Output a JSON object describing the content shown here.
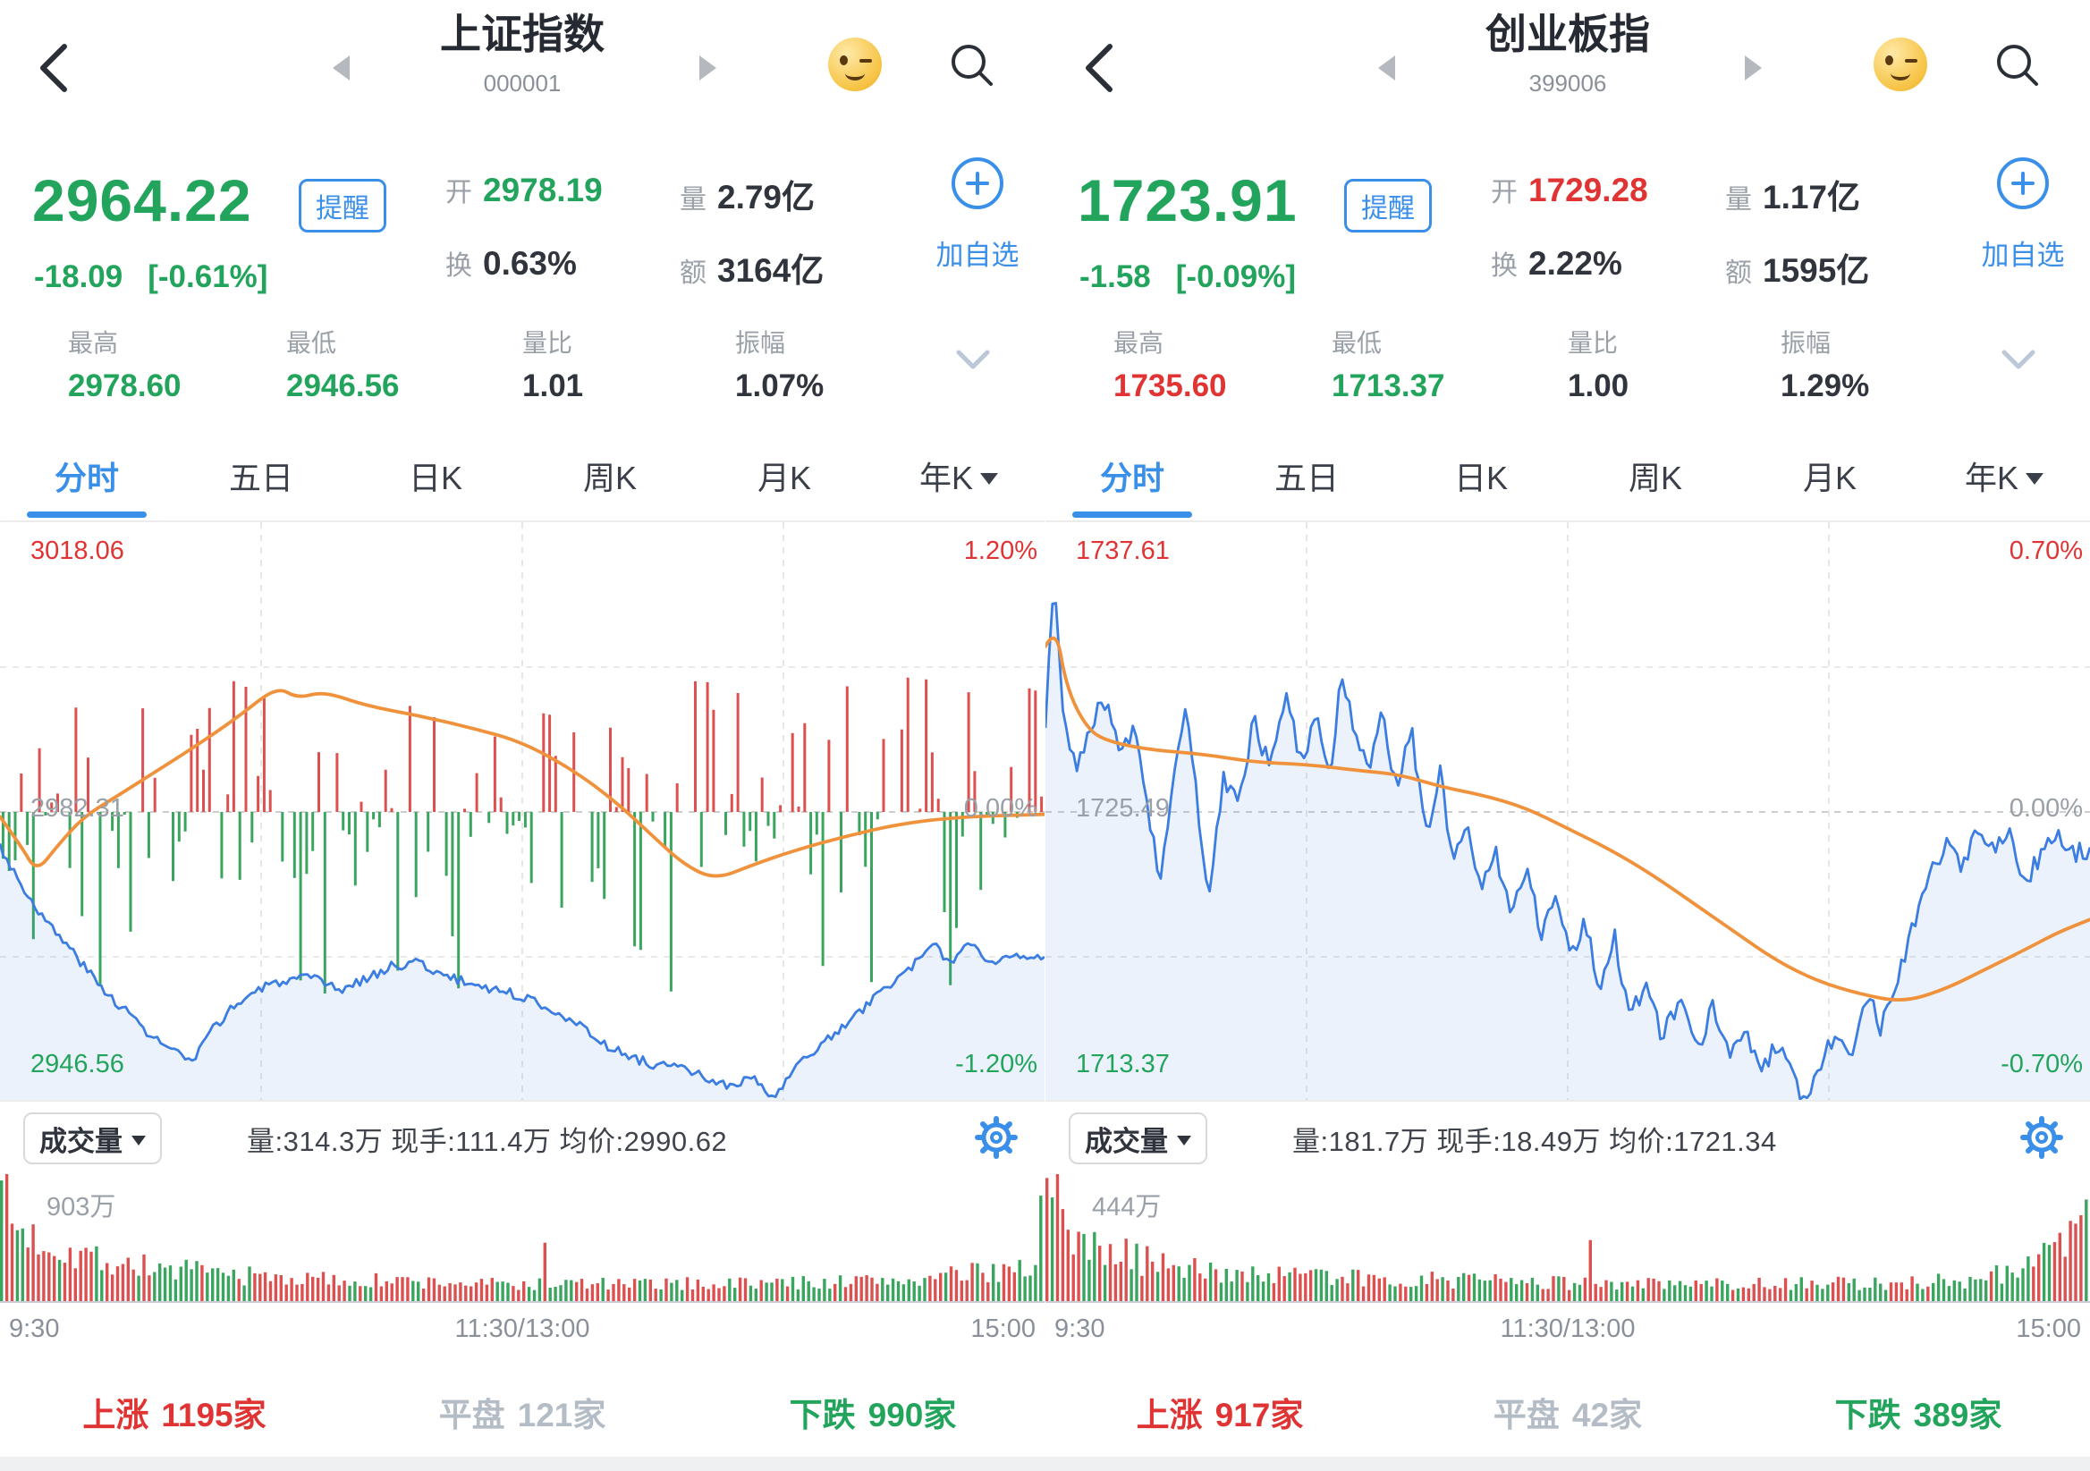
{
  "colors": {
    "accent_blue": "#3a8fe8",
    "text_red": "#e03434",
    "text_green": "#23a45c",
    "price_line": "#3b7de0",
    "avg_line": "#f0923c",
    "fill_blue": "rgba(60,125,220,0.10)",
    "bar_red": "#dd5050",
    "bar_green": "#3aa55e",
    "label_gray": "#9aa0a8"
  },
  "panels": [
    {
      "header": {
        "title": "上证指数",
        "code": "000001"
      },
      "quote": {
        "price": "2964.22",
        "price_color": "green",
        "alert_label": "提醒",
        "change": "-18.09",
        "change_pct": "[-0.61%]",
        "change_color": "green",
        "rows": [
          {
            "label": "开",
            "value": "2978.19",
            "color": "green"
          },
          {
            "label": "换",
            "value": "0.63%",
            "color": "dark"
          },
          {
            "label": "量",
            "value": "2.79亿",
            "color": "dark"
          },
          {
            "label": "额",
            "value": "3164亿",
            "color": "dark"
          }
        ],
        "add_watch_label": "加自选"
      },
      "stats": [
        {
          "label": "最高",
          "value": "2978.60",
          "color": "green"
        },
        {
          "label": "最低",
          "value": "2946.56",
          "color": "green"
        },
        {
          "label": "量比",
          "value": "1.01",
          "color": "dark"
        },
        {
          "label": "振幅",
          "value": "1.07%",
          "color": "dark"
        }
      ],
      "tabs": [
        {
          "label": "分时"
        },
        {
          "label": "五日"
        },
        {
          "label": "日K"
        },
        {
          "label": "周K"
        },
        {
          "label": "月K"
        },
        {
          "label": "年K"
        }
      ],
      "active_tab": "分时",
      "chart": {
        "type": "line",
        "range_pct": 1.2,
        "seed": 3,
        "jitter": 0.02,
        "top_label": "3018.06",
        "top_right": "1.20%",
        "mid_label": "2982.31",
        "mid_right": "0.00%",
        "bottom_label": "2946.56",
        "bottom_right": "-1.20%",
        "price_keypoints": [
          [
            0,
            -0.14
          ],
          [
            0.02,
            -0.3
          ],
          [
            0.045,
            -0.46
          ],
          [
            0.07,
            -0.58
          ],
          [
            0.095,
            -0.72
          ],
          [
            0.12,
            -0.82
          ],
          [
            0.145,
            -0.93
          ],
          [
            0.17,
            -1.0
          ],
          [
            0.185,
            -1.04
          ],
          [
            0.2,
            -0.92
          ],
          [
            0.22,
            -0.82
          ],
          [
            0.245,
            -0.74
          ],
          [
            0.27,
            -0.7
          ],
          [
            0.3,
            -0.69
          ],
          [
            0.325,
            -0.74
          ],
          [
            0.35,
            -0.69
          ],
          [
            0.375,
            -0.64
          ],
          [
            0.4,
            -0.62
          ],
          [
            0.425,
            -0.68
          ],
          [
            0.45,
            -0.71
          ],
          [
            0.48,
            -0.74
          ],
          [
            0.51,
            -0.78
          ],
          [
            0.54,
            -0.84
          ],
          [
            0.565,
            -0.92
          ],
          [
            0.59,
            -0.99
          ],
          [
            0.62,
            -1.04
          ],
          [
            0.65,
            -1.06
          ],
          [
            0.675,
            -1.1
          ],
          [
            0.7,
            -1.14
          ],
          [
            0.72,
            -1.1
          ],
          [
            0.74,
            -1.19
          ],
          [
            0.755,
            -1.1
          ],
          [
            0.775,
            -1.0
          ],
          [
            0.8,
            -0.92
          ],
          [
            0.825,
            -0.82
          ],
          [
            0.85,
            -0.72
          ],
          [
            0.875,
            -0.63
          ],
          [
            0.895,
            -0.56
          ],
          [
            0.91,
            -0.62
          ],
          [
            0.93,
            -0.54
          ],
          [
            0.95,
            -0.63
          ],
          [
            0.97,
            -0.58
          ],
          [
            1,
            -0.61
          ]
        ],
        "avg_keypoints": [
          [
            0,
            -0.02
          ],
          [
            0.02,
            -0.14
          ],
          [
            0.035,
            -0.25
          ],
          [
            0.055,
            -0.14
          ],
          [
            0.08,
            -0.02
          ],
          [
            0.11,
            0.06
          ],
          [
            0.15,
            0.17
          ],
          [
            0.19,
            0.28
          ],
          [
            0.23,
            0.4
          ],
          [
            0.265,
            0.52
          ],
          [
            0.285,
            0.47
          ],
          [
            0.31,
            0.5
          ],
          [
            0.35,
            0.44
          ],
          [
            0.4,
            0.4
          ],
          [
            0.45,
            0.35
          ],
          [
            0.5,
            0.29
          ],
          [
            0.55,
            0.17
          ],
          [
            0.59,
            0.04
          ],
          [
            0.62,
            -0.08
          ],
          [
            0.655,
            -0.22
          ],
          [
            0.685,
            -0.28
          ],
          [
            0.72,
            -0.22
          ],
          [
            0.76,
            -0.16
          ],
          [
            0.81,
            -0.1
          ],
          [
            0.86,
            -0.05
          ],
          [
            0.92,
            -0.02
          ],
          [
            1,
            -0.01
          ]
        ],
        "tick_bars": {
          "seed": 11,
          "count": 172,
          "p_up": 0.44,
          "max_up": 168,
          "max_down": 205
        }
      },
      "info_bar": {
        "selector": "成交量",
        "metrics": "量:314.3万  现手:111.4万  均价:2990.62"
      },
      "volume": {
        "max_label": "903万",
        "seed": 7,
        "count": 198,
        "start_color": "G",
        "envelope": [
          [
            0,
            0.95
          ],
          [
            0.01,
            0.6
          ],
          [
            0.03,
            0.5
          ],
          [
            0.06,
            0.42
          ],
          [
            0.1,
            0.32
          ],
          [
            0.15,
            0.26
          ],
          [
            0.2,
            0.22
          ],
          [
            0.3,
            0.17
          ],
          [
            0.4,
            0.15
          ],
          [
            0.5,
            0.13
          ],
          [
            0.55,
            0.14
          ],
          [
            0.6,
            0.13
          ],
          [
            0.7,
            0.14
          ],
          [
            0.8,
            0.15
          ],
          [
            0.88,
            0.17
          ],
          [
            0.94,
            0.22
          ],
          [
            0.98,
            0.28
          ],
          [
            1,
            0.3
          ]
        ],
        "specials": {
          "0": [
            0.95,
            "G"
          ],
          "103": [
            0.46,
            "R"
          ],
          "197": [
            0.83,
            "G"
          ]
        }
      },
      "time_axis": {
        "open": "9:30",
        "mid": "11:30/13:00",
        "close": "15:00"
      },
      "breadth": {
        "up_label": "上涨",
        "up_count": "1195家",
        "flat_label": "平盘",
        "flat_count": "121家",
        "down_label": "下跌",
        "down_count": "990家"
      }
    },
    {
      "header": {
        "title": "创业板指",
        "code": "399006"
      },
      "quote": {
        "price": "1723.91",
        "price_color": "green",
        "alert_label": "提醒",
        "change": "-1.58",
        "change_pct": "[-0.09%]",
        "change_color": "green",
        "rows": [
          {
            "label": "开",
            "value": "1729.28",
            "color": "red"
          },
          {
            "label": "换",
            "value": "2.22%",
            "color": "dark"
          },
          {
            "label": "量",
            "value": "1.17亿",
            "color": "dark"
          },
          {
            "label": "额",
            "value": "1595亿",
            "color": "dark"
          }
        ],
        "add_watch_label": "加自选"
      },
      "stats": [
        {
          "label": "最高",
          "value": "1735.60",
          "color": "red"
        },
        {
          "label": "最低",
          "value": "1713.37",
          "color": "green"
        },
        {
          "label": "量比",
          "value": "1.00",
          "color": "dark"
        },
        {
          "label": "振幅",
          "value": "1.29%",
          "color": "dark"
        }
      ],
      "tabs": [
        {
          "label": "分时"
        },
        {
          "label": "五日"
        },
        {
          "label": "日K"
        },
        {
          "label": "周K"
        },
        {
          "label": "月K"
        },
        {
          "label": "年K"
        }
      ],
      "active_tab": "分时",
      "chart": {
        "type": "line",
        "range_pct": 0.7,
        "seed": 8,
        "jitter": 0.025,
        "top_label": "1737.61",
        "top_right": "0.70%",
        "mid_label": "1725.49",
        "mid_right": "0.00%",
        "bottom_label": "1713.37",
        "bottom_right": "-0.70%",
        "price_keypoints": [
          [
            0,
            0.22
          ],
          [
            0.008,
            0.57
          ],
          [
            0.018,
            0.2
          ],
          [
            0.03,
            0.12
          ],
          [
            0.045,
            0.22
          ],
          [
            0.06,
            0.28
          ],
          [
            0.072,
            0.13
          ],
          [
            0.085,
            0.22
          ],
          [
            0.1,
            -0.02
          ],
          [
            0.11,
            -0.18
          ],
          [
            0.122,
            0.06
          ],
          [
            0.135,
            0.28
          ],
          [
            0.148,
            -0.06
          ],
          [
            0.158,
            -0.2
          ],
          [
            0.17,
            0.08
          ],
          [
            0.185,
            0.04
          ],
          [
            0.2,
            0.22
          ],
          [
            0.215,
            0.1
          ],
          [
            0.23,
            0.3
          ],
          [
            0.245,
            0.12
          ],
          [
            0.26,
            0.22
          ],
          [
            0.272,
            0.07
          ],
          [
            0.283,
            0.34
          ],
          [
            0.295,
            0.2
          ],
          [
            0.31,
            0.1
          ],
          [
            0.322,
            0.24
          ],
          [
            0.335,
            0.06
          ],
          [
            0.35,
            0.2
          ],
          [
            0.365,
            -0.05
          ],
          [
            0.378,
            0.1
          ],
          [
            0.39,
            -0.12
          ],
          [
            0.403,
            -0.02
          ],
          [
            0.417,
            -0.18
          ],
          [
            0.43,
            -0.08
          ],
          [
            0.445,
            -0.25
          ],
          [
            0.46,
            -0.13
          ],
          [
            0.475,
            -0.3
          ],
          [
            0.49,
            -0.2
          ],
          [
            0.503,
            -0.35
          ],
          [
            0.517,
            -0.27
          ],
          [
            0.53,
            -0.42
          ],
          [
            0.545,
            -0.3
          ],
          [
            0.56,
            -0.5
          ],
          [
            0.575,
            -0.4
          ],
          [
            0.59,
            -0.55
          ],
          [
            0.608,
            -0.44
          ],
          [
            0.623,
            -0.58
          ],
          [
            0.64,
            -0.47
          ],
          [
            0.655,
            -0.6
          ],
          [
            0.67,
            -0.52
          ],
          [
            0.685,
            -0.64
          ],
          [
            0.7,
            -0.56
          ],
          [
            0.714,
            -0.63
          ],
          [
            0.728,
            -0.7
          ],
          [
            0.742,
            -0.62
          ],
          [
            0.757,
            -0.52
          ],
          [
            0.772,
            -0.58
          ],
          [
            0.787,
            -0.45
          ],
          [
            0.8,
            -0.52
          ],
          [
            0.815,
            -0.4
          ],
          [
            0.83,
            -0.28
          ],
          [
            0.845,
            -0.17
          ],
          [
            0.862,
            -0.08
          ],
          [
            0.878,
            -0.13
          ],
          [
            0.893,
            -0.03
          ],
          [
            0.908,
            -0.1
          ],
          [
            0.923,
            -0.05
          ],
          [
            0.938,
            -0.17
          ],
          [
            0.953,
            -0.1
          ],
          [
            0.968,
            -0.05
          ],
          [
            0.984,
            -0.1
          ],
          [
            1,
            -0.09
          ]
        ],
        "avg_keypoints": [
          [
            0,
            0.4
          ],
          [
            0.01,
            0.45
          ],
          [
            0.02,
            0.3
          ],
          [
            0.04,
            0.2
          ],
          [
            0.06,
            0.17
          ],
          [
            0.1,
            0.15
          ],
          [
            0.15,
            0.14
          ],
          [
            0.2,
            0.12
          ],
          [
            0.25,
            0.115
          ],
          [
            0.3,
            0.1
          ],
          [
            0.34,
            0.09
          ],
          [
            0.38,
            0.06
          ],
          [
            0.42,
            0.04
          ],
          [
            0.46,
            0.01
          ],
          [
            0.5,
            -0.04
          ],
          [
            0.54,
            -0.09
          ],
          [
            0.58,
            -0.15
          ],
          [
            0.62,
            -0.22
          ],
          [
            0.66,
            -0.29
          ],
          [
            0.7,
            -0.36
          ],
          [
            0.74,
            -0.41
          ],
          [
            0.78,
            -0.44
          ],
          [
            0.82,
            -0.46
          ],
          [
            0.86,
            -0.43
          ],
          [
            0.9,
            -0.38
          ],
          [
            0.94,
            -0.33
          ],
          [
            0.97,
            -0.29
          ],
          [
            1,
            -0.26
          ]
        ],
        "tick_bars": null
      },
      "info_bar": {
        "selector": "成交量",
        "metrics": "量:181.7万  现手:18.49万  均价:1721.34"
      },
      "volume": {
        "max_label": "444万",
        "seed": 19,
        "count": 198,
        "start_color": "R",
        "envelope": [
          [
            0,
            0.95
          ],
          [
            0.01,
            0.75
          ],
          [
            0.02,
            0.55
          ],
          [
            0.05,
            0.45
          ],
          [
            0.08,
            0.35
          ],
          [
            0.12,
            0.28
          ],
          [
            0.18,
            0.22
          ],
          [
            0.25,
            0.2
          ],
          [
            0.3,
            0.18
          ],
          [
            0.4,
            0.16
          ],
          [
            0.5,
            0.14
          ],
          [
            0.6,
            0.13
          ],
          [
            0.7,
            0.14
          ],
          [
            0.8,
            0.14
          ],
          [
            0.88,
            0.16
          ],
          [
            0.94,
            0.25
          ],
          [
            0.98,
            0.45
          ],
          [
            1,
            0.6
          ]
        ],
        "specials": {
          "0": [
            0.97,
            "R"
          ],
          "103": [
            0.48,
            "R"
          ],
          "197": [
            0.8,
            "G"
          ]
        }
      },
      "time_axis": {
        "open": "9:30",
        "mid": "11:30/13:00",
        "close": "15:00"
      },
      "breadth": {
        "up_label": "上涨",
        "up_count": "917家",
        "flat_label": "平盘",
        "flat_count": "42家",
        "down_label": "下跌",
        "down_count": "389家"
      }
    }
  ]
}
